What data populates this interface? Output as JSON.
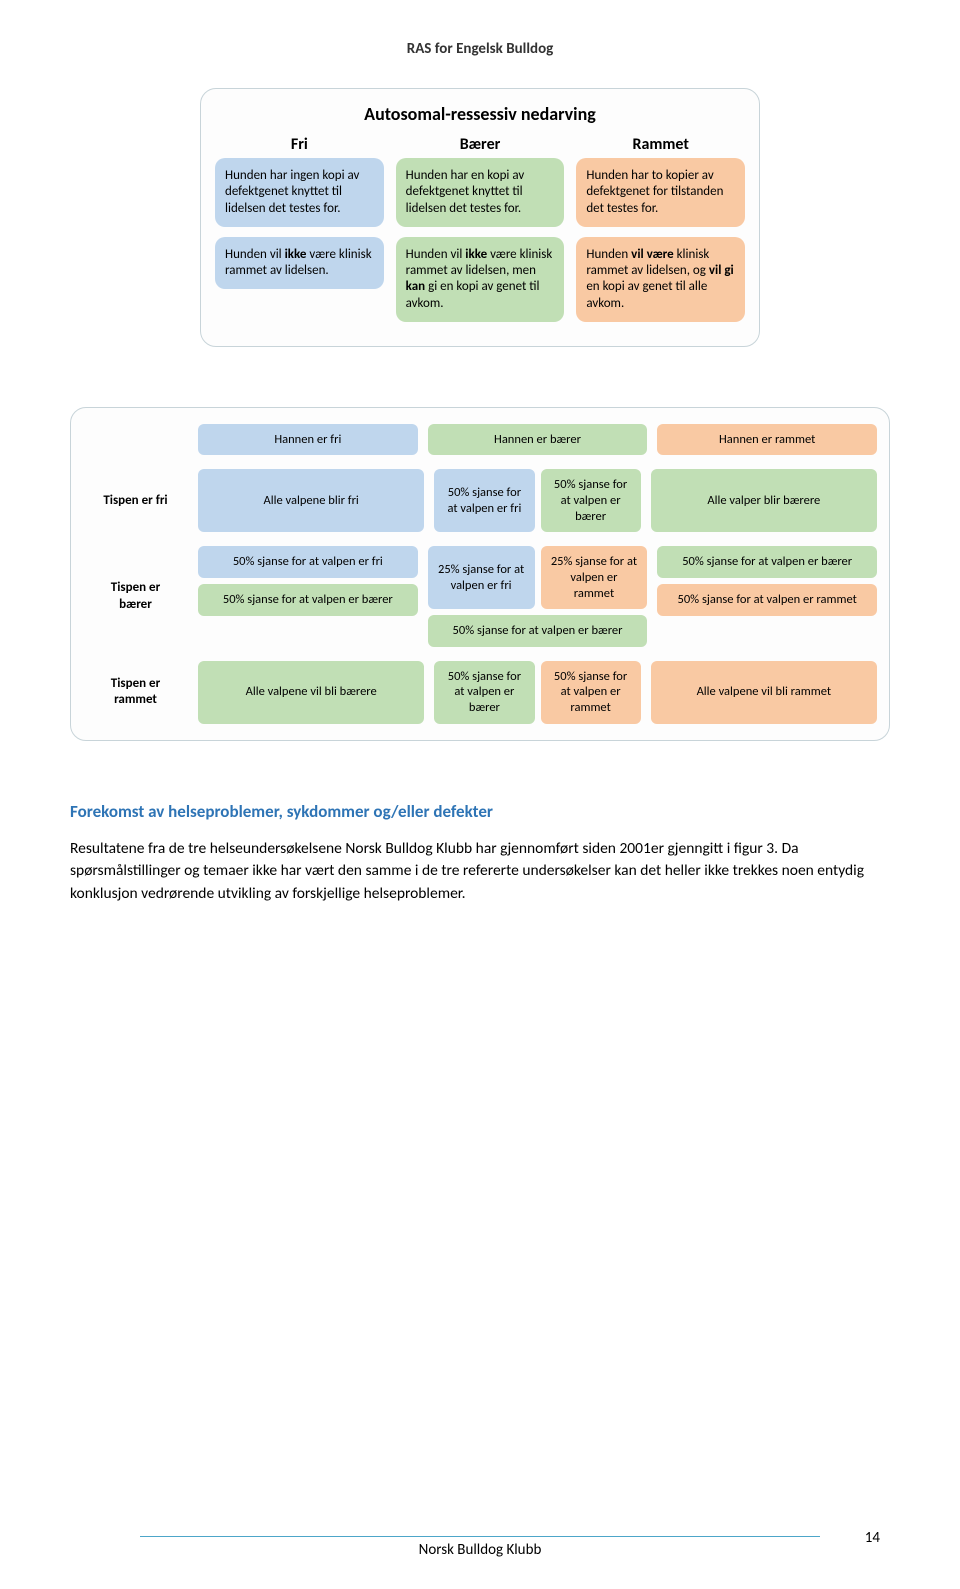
{
  "doc_header": "RAS for Engelsk Bulldog",
  "colors": {
    "fri": "#bfd6ed",
    "barer": "#c1dfb5",
    "rammet": "#f9c9a3",
    "panel_border": "#c8d4d9",
    "heading": "#2e74b5",
    "hr": "#4da6c9"
  },
  "top_panel": {
    "title": "Autosomal-ressessiv nedarving",
    "cols": [
      {
        "head": "Fri",
        "card1_pre": "Hunden har ingen kopi av defektgenet knyttet til lidelsen det testes for.",
        "card2_pre": "Hunden vil ",
        "card2_bold": "ikke",
        "card2_post": " være klinisk rammet av lidelsen."
      },
      {
        "head": "Bærer",
        "card1_pre": "Hunden har en kopi av defektgenet knyttet til lidelsen det testes for.",
        "card2_pre": "Hunden vil ",
        "card2_bold": "ikke",
        "card2_post1": " være klinisk rammet av lidelsen, men ",
        "card2_bold2": "kan",
        "card2_post2": " gi en kopi av genet til avkom."
      },
      {
        "head": "Rammet",
        "card1_pre": "Hunden har to kopier av defektgenet for tilstanden det testes for.",
        "card2_pre": "Hunden ",
        "card2_bold": "vil være",
        "card2_post1": " klinisk rammet av lidelsen, og ",
        "card2_bold2": "vil gi",
        "card2_post2": " en kopi av genet til alle avkom."
      }
    ]
  },
  "punnett": {
    "headers": [
      "Hannen er fri",
      "Hannen er bærer",
      "Hannen er rammet"
    ],
    "rows": [
      {
        "label": "Tispen er fri",
        "col_fri": "Alle valpene blir fri",
        "col_barer_a": "50% sjanse for at valpen er fri",
        "col_barer_b": "50% sjanse for at valpen er bærer",
        "col_rammet": "Alle valper blir bærere"
      },
      {
        "label": "Tispen er bærer",
        "col_fri_a": "50% sjanse for at valpen er fri",
        "col_fri_b": "50% sjanse for at valpen er bærer",
        "col_barer_a": "25% sjanse for at valpen er fri",
        "col_barer_b": "25% sjanse for at valpen er rammet",
        "col_barer_c": "50% sjanse for at valpen er bærer",
        "col_rammet_a": "50% sjanse for at valpen er bærer",
        "col_rammet_b": "50% sjanse for at valpen er rammet"
      },
      {
        "label": "Tispen er rammet",
        "col_fri": "Alle valpene vil bli bærere",
        "col_barer_a": "50% sjanse for at valpen er bærer",
        "col_barer_b": "50% sjanse for at valpen er rammet",
        "col_rammet": "Alle valpene vil bli rammet"
      }
    ]
  },
  "section_heading": "Forekomst av helseproblemer, sykdommer og/eller defekter",
  "para1": "Resultatene fra de tre helseundersøkelsene Norsk Bulldog Klubb har gjennomført siden 2001er gjenngitt i figur 3. Da spørsmålstillinger og temaer ikke har vært den samme i de tre refererte undersøkelser kan det heller ikke trekkes noen entydig konklusjon vedrørende utvikling av forskjellige helseproblemer.",
  "footer_text": "Norsk Bulldog Klubb",
  "page_number": "14"
}
